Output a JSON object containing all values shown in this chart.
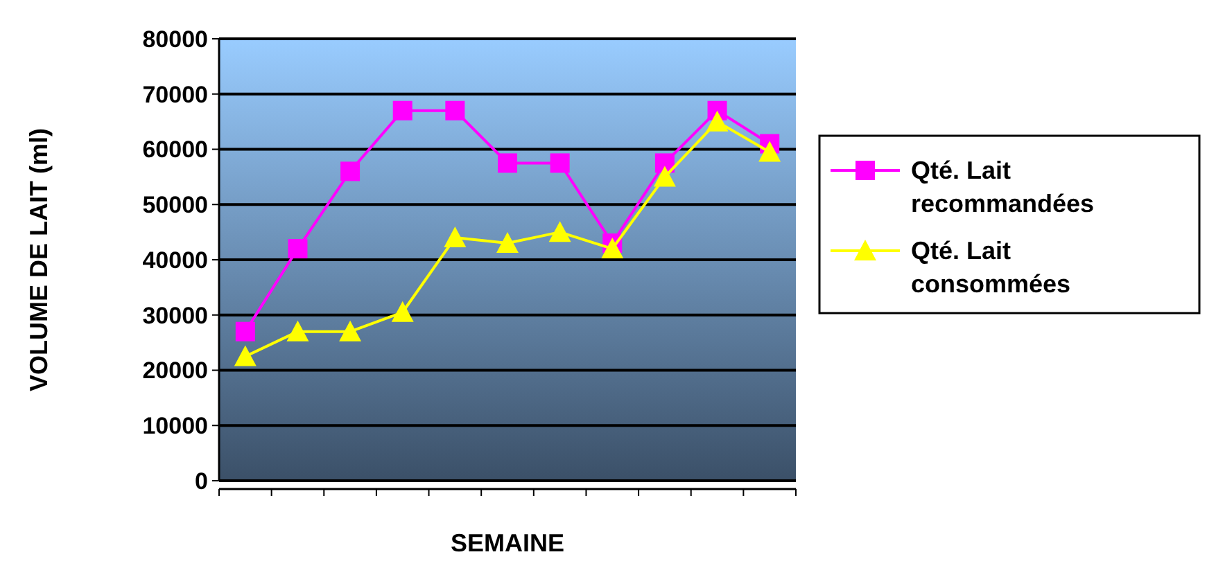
{
  "chart_data": {
    "type": "line",
    "xlabel": "SEMAINE",
    "ylabel": "VOLUME DE LAIT (ml)",
    "categories": [
      null,
      null,
      null,
      null,
      null,
      null,
      null,
      null,
      null,
      null,
      null
    ],
    "series": [
      {
        "name": "Qté. Lait recommandées",
        "color": "#ff00ff",
        "marker": "square",
        "values": [
          27000,
          42000,
          56000,
          67000,
          67000,
          57500,
          57500,
          43000,
          57500,
          67000,
          61000
        ]
      },
      {
        "name": "Qté. Lait consommées",
        "color": "#ffff00",
        "marker": "triangle",
        "values": [
          22500,
          27000,
          27000,
          30500,
          44000,
          43000,
          45000,
          42000,
          55000,
          65000,
          59500
        ]
      }
    ],
    "ylim": [
      0,
      80000
    ],
    "yticks": [
      0,
      10000,
      20000,
      30000,
      40000,
      50000,
      60000,
      70000,
      80000
    ],
    "grid": "y",
    "legend": "right",
    "line_style": "solid"
  }
}
